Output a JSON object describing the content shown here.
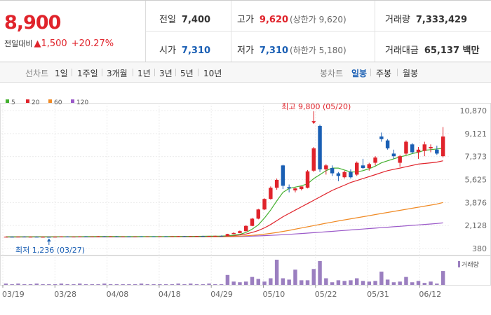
{
  "header": {
    "price": "8,900",
    "change_label": "전일대비",
    "change_arrow": "▲",
    "change_value": "1,500",
    "change_pct": "+20.27%",
    "prev_close_label": "전일",
    "prev_close": "7,400",
    "high_label": "고가",
    "high": "9,620",
    "high_sub": "(상한가 9,620)",
    "volume_label": "거래량",
    "volume": "7,333,429",
    "open_label": "시가",
    "open": "7,310",
    "low_label": "저가",
    "low": "7,310",
    "low_sub": "(하한가 5,180)",
    "amount_label": "거래대금",
    "amount": "65,137 백만"
  },
  "tabs": {
    "line_label": "선차트",
    "line_items": [
      "1일",
      "1주일",
      "3개월",
      "1년",
      "3년",
      "5년",
      "10년"
    ],
    "candle_label": "봉차트",
    "candle_items": [
      "일봉",
      "주봉",
      "월봉"
    ],
    "candle_selected": "일봉"
  },
  "colors": {
    "up": "#e0232b",
    "down": "#1a5fb4",
    "ma5": "#44b02f",
    "ma20": "#e0232b",
    "ma60": "#f08a24",
    "ma120": "#9b59c9",
    "volume": "#9b7fc0"
  },
  "chart_data": {
    "type": "candlestick",
    "legend": [
      {
        "name": "5",
        "color": "#44b02f"
      },
      {
        "name": "20",
        "color": "#e0232b"
      },
      {
        "name": "60",
        "color": "#f08a24"
      },
      {
        "name": "120",
        "color": "#9b59c9"
      }
    ],
    "y_ticks": [
      "10,870",
      "9,121",
      "7,373",
      "5,625",
      "3,876",
      "2,128",
      "380"
    ],
    "ylim": [
      380,
      10870
    ],
    "x_ticks": [
      "03/19",
      "03/28",
      "04/08",
      "04/18",
      "04/29",
      "05/10",
      "05/22",
      "05/31",
      "06/12"
    ],
    "annotations": {
      "high": {
        "label": "최고 9,800 (05/20)",
        "value": 9800
      },
      "low": {
        "label": "최저 1,236 (03/27)",
        "value": 1236
      }
    },
    "volume_label": "거래량",
    "candles": [
      {
        "o": 1240,
        "h": 1290,
        "l": 1230,
        "c": 1270
      },
      {
        "o": 1270,
        "h": 1300,
        "l": 1250,
        "c": 1255
      },
      {
        "o": 1255,
        "h": 1290,
        "l": 1240,
        "c": 1280
      },
      {
        "o": 1280,
        "h": 1310,
        "l": 1255,
        "c": 1260
      },
      {
        "o": 1260,
        "h": 1285,
        "l": 1240,
        "c": 1270
      },
      {
        "o": 1270,
        "h": 1300,
        "l": 1250,
        "c": 1255
      },
      {
        "o": 1255,
        "h": 1280,
        "l": 1240,
        "c": 1262
      },
      {
        "o": 1262,
        "h": 1280,
        "l": 1236,
        "c": 1245
      },
      {
        "o": 1245,
        "h": 1280,
        "l": 1238,
        "c": 1270
      },
      {
        "o": 1270,
        "h": 1300,
        "l": 1250,
        "c": 1285
      },
      {
        "o": 1285,
        "h": 1310,
        "l": 1260,
        "c": 1268
      },
      {
        "o": 1268,
        "h": 1290,
        "l": 1250,
        "c": 1280
      },
      {
        "o": 1280,
        "h": 1310,
        "l": 1260,
        "c": 1295
      },
      {
        "o": 1295,
        "h": 1320,
        "l": 1270,
        "c": 1275
      },
      {
        "o": 1275,
        "h": 1300,
        "l": 1255,
        "c": 1290
      },
      {
        "o": 1290,
        "h": 1330,
        "l": 1270,
        "c": 1305
      },
      {
        "o": 1305,
        "h": 1320,
        "l": 1280,
        "c": 1285
      },
      {
        "o": 1285,
        "h": 1310,
        "l": 1265,
        "c": 1298
      },
      {
        "o": 1298,
        "h": 1320,
        "l": 1275,
        "c": 1280
      },
      {
        "o": 1280,
        "h": 1300,
        "l": 1260,
        "c": 1292
      },
      {
        "o": 1292,
        "h": 1310,
        "l": 1270,
        "c": 1278
      },
      {
        "o": 1278,
        "h": 1300,
        "l": 1260,
        "c": 1288
      },
      {
        "o": 1288,
        "h": 1310,
        "l": 1270,
        "c": 1275
      },
      {
        "o": 1275,
        "h": 1300,
        "l": 1255,
        "c": 1290
      },
      {
        "o": 1290,
        "h": 1310,
        "l": 1270,
        "c": 1280
      },
      {
        "o": 1280,
        "h": 1300,
        "l": 1260,
        "c": 1295
      },
      {
        "o": 1295,
        "h": 1320,
        "l": 1275,
        "c": 1282
      },
      {
        "o": 1282,
        "h": 1310,
        "l": 1265,
        "c": 1298
      },
      {
        "o": 1298,
        "h": 1330,
        "l": 1280,
        "c": 1312
      },
      {
        "o": 1312,
        "h": 1330,
        "l": 1285,
        "c": 1290
      },
      {
        "o": 1290,
        "h": 1320,
        "l": 1270,
        "c": 1305
      },
      {
        "o": 1305,
        "h": 1340,
        "l": 1290,
        "c": 1325
      },
      {
        "o": 1325,
        "h": 1350,
        "l": 1300,
        "c": 1310
      },
      {
        "o": 1310,
        "h": 1340,
        "l": 1290,
        "c": 1330
      },
      {
        "o": 1330,
        "h": 1360,
        "l": 1310,
        "c": 1345
      },
      {
        "o": 1345,
        "h": 1370,
        "l": 1320,
        "c": 1330
      },
      {
        "o": 1330,
        "h": 1500,
        "l": 1320,
        "c": 1480
      },
      {
        "o": 1480,
        "h": 1620,
        "l": 1460,
        "c": 1560
      },
      {
        "o": 1560,
        "h": 1750,
        "l": 1540,
        "c": 1700
      },
      {
        "o": 1700,
        "h": 2150,
        "l": 1680,
        "c": 2100
      },
      {
        "o": 2100,
        "h": 2700,
        "l": 2080,
        "c": 2650
      },
      {
        "o": 2650,
        "h": 3400,
        "l": 2600,
        "c": 3350
      },
      {
        "o": 3350,
        "h": 4200,
        "l": 3300,
        "c": 4150
      },
      {
        "o": 4150,
        "h": 5100,
        "l": 4100,
        "c": 5000
      },
      {
        "o": 5000,
        "h": 5700,
        "l": 4850,
        "c": 5600
      },
      {
        "o": 6700,
        "h": 6750,
        "l": 4900,
        "c": 5150
      },
      {
        "o": 5050,
        "h": 5250,
        "l": 4650,
        "c": 4950
      },
      {
        "o": 4800,
        "h": 5000,
        "l": 4650,
        "c": 4950
      },
      {
        "o": 4900,
        "h": 5100,
        "l": 4800,
        "c": 5100
      },
      {
        "o": 5000,
        "h": 6350,
        "l": 4950,
        "c": 6250
      },
      {
        "o": 6300,
        "h": 8100,
        "l": 6200,
        "c": 8000
      },
      {
        "o": 9700,
        "h": 9800,
        "l": 6200,
        "c": 6400
      },
      {
        "o": 6400,
        "h": 6800,
        "l": 6000,
        "c": 6700
      },
      {
        "o": 6500,
        "h": 6700,
        "l": 5900,
        "c": 6100
      },
      {
        "o": 6100,
        "h": 6200,
        "l": 5500,
        "c": 5900
      },
      {
        "o": 5800,
        "h": 6300,
        "l": 5700,
        "c": 6200
      },
      {
        "o": 6200,
        "h": 6400,
        "l": 5700,
        "c": 5800
      },
      {
        "o": 6000,
        "h": 7000,
        "l": 5900,
        "c": 6900
      },
      {
        "o": 6700,
        "h": 7200,
        "l": 6400,
        "c": 6500
      },
      {
        "o": 6500,
        "h": 6900,
        "l": 6300,
        "c": 6800
      },
      {
        "o": 6900,
        "h": 7400,
        "l": 6700,
        "c": 7300
      },
      {
        "o": 8900,
        "h": 9200,
        "l": 8500,
        "c": 8700
      },
      {
        "o": 8600,
        "h": 8700,
        "l": 7900,
        "c": 8000
      },
      {
        "o": 7600,
        "h": 7900,
        "l": 7200,
        "c": 7400
      },
      {
        "o": 6900,
        "h": 7500,
        "l": 6600,
        "c": 7400
      },
      {
        "o": 7600,
        "h": 8600,
        "l": 7500,
        "c": 8500
      },
      {
        "o": 8300,
        "h": 8400,
        "l": 7600,
        "c": 7700
      },
      {
        "o": 7700,
        "h": 8100,
        "l": 7200,
        "c": 7900
      },
      {
        "o": 7800,
        "h": 8500,
        "l": 7400,
        "c": 8300
      },
      {
        "o": 8000,
        "h": 8300,
        "l": 7700,
        "c": 8100
      },
      {
        "o": 7900,
        "h": 8200,
        "l": 7500,
        "c": 7600
      },
      {
        "o": 7400,
        "h": 9620,
        "l": 7310,
        "c": 8900
      }
    ],
    "ma5": [
      1265,
      1262,
      1263,
      1265,
      1267,
      1264,
      1262,
      1260,
      1262,
      1266,
      1270,
      1274,
      1281,
      1283,
      1284,
      1288,
      1290,
      1291,
      1289,
      1287,
      1286,
      1285,
      1284,
      1284,
      1285,
      1284,
      1286,
      1288,
      1293,
      1297,
      1300,
      1306,
      1312,
      1317,
      1325,
      1327,
      1350,
      1390,
      1455,
      1600,
      1850,
      2180,
      2700,
      3300,
      4000,
      4650,
      4950,
      5050,
      5150,
      5300,
      5700,
      6000,
      6300,
      6500,
      6500,
      6350,
      6200,
      6200,
      6300,
      6450,
      6650,
      6900,
      7050,
      7200,
      7350,
      7450,
      7600,
      7700,
      7850,
      7900,
      7950,
      8000
    ],
    "ma20": [
      1262,
      1262,
      1262,
      1263,
      1263,
      1263,
      1264,
      1264,
      1265,
      1266,
      1267,
      1268,
      1269,
      1270,
      1271,
      1272,
      1273,
      1274,
      1275,
      1276,
      1276,
      1277,
      1278,
      1279,
      1280,
      1281,
      1282,
      1284,
      1286,
      1288,
      1290,
      1293,
      1296,
      1300,
      1305,
      1310,
      1330,
      1360,
      1410,
      1480,
      1600,
      1750,
      1950,
      2200,
      2500,
      2800,
      3050,
      3300,
      3550,
      3800,
      4050,
      4300,
      4550,
      4800,
      5000,
      5200,
      5400,
      5550,
      5700,
      5850,
      6000,
      6150,
      6300,
      6400,
      6500,
      6600,
      6700,
      6800,
      6850,
      6900,
      6950,
      7050
    ],
    "ma60": [
      1260,
      1260,
      1261,
      1261,
      1261,
      1262,
      1262,
      1262,
      1263,
      1263,
      1263,
      1264,
      1264,
      1264,
      1265,
      1265,
      1266,
      1266,
      1266,
      1267,
      1267,
      1268,
      1268,
      1268,
      1269,
      1269,
      1270,
      1270,
      1271,
      1272,
      1273,
      1274,
      1275,
      1276,
      1278,
      1280,
      1290,
      1305,
      1325,
      1350,
      1380,
      1420,
      1470,
      1530,
      1600,
      1680,
      1760,
      1850,
      1940,
      2030,
      2120,
      2210,
      2300,
      2390,
      2480,
      2560,
      2640,
      2720,
      2800,
      2880,
      2960,
      3040,
      3120,
      3200,
      3280,
      3360,
      3440,
      3520,
      3600,
      3680,
      3760,
      3876
    ],
    "ma120": [
      1255,
      1255,
      1255,
      1256,
      1256,
      1256,
      1256,
      1257,
      1257,
      1257,
      1258,
      1258,
      1258,
      1259,
      1259,
      1259,
      1260,
      1260,
      1260,
      1261,
      1261,
      1261,
      1262,
      1262,
      1262,
      1263,
      1263,
      1264,
      1264,
      1265,
      1265,
      1266,
      1266,
      1267,
      1268,
      1269,
      1274,
      1282,
      1292,
      1305,
      1320,
      1338,
      1358,
      1380,
      1405,
      1430,
      1458,
      1488,
      1518,
      1550,
      1582,
      1615,
      1650,
      1685,
      1720,
      1755,
      1790,
      1825,
      1860,
      1895,
      1930,
      1965,
      2000,
      2035,
      2070,
      2105,
      2140,
      2175,
      2210,
      2245,
      2280,
      2330
    ],
    "volume": [
      2,
      1,
      2,
      1,
      1,
      2,
      1,
      1,
      1,
      2,
      1,
      1,
      2,
      1,
      1,
      1,
      2,
      1,
      1,
      1,
      1,
      1,
      2,
      1,
      1,
      1,
      1,
      1,
      2,
      1,
      2,
      1,
      1,
      2,
      1,
      1,
      15,
      5,
      4,
      5,
      12,
      9,
      5,
      10,
      38,
      10,
      8,
      23,
      7,
      7,
      24,
      36,
      10,
      4,
      7,
      6,
      7,
      10,
      6,
      5,
      6,
      20,
      8,
      4,
      5,
      12,
      4,
      6,
      3,
      5,
      2,
      21
    ]
  }
}
